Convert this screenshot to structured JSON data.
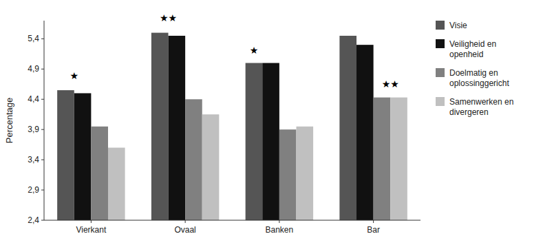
{
  "chart_data": {
    "type": "bar",
    "categories": [
      "Vierkant",
      "Ovaal",
      "Banken",
      "Bar"
    ],
    "series": [
      {
        "name": "Visie",
        "color": "#555555",
        "values": [
          4.55,
          5.5,
          5.0,
          5.45
        ]
      },
      {
        "name": "Veiligheid en\nopenheid",
        "color": "#111111",
        "values": [
          4.5,
          5.45,
          5.0,
          5.3
        ]
      },
      {
        "name": "Doelmatig en\noplossinggericht",
        "color": "#808080",
        "values": [
          3.95,
          4.4,
          3.9,
          4.43
        ]
      },
      {
        "name": "Samenwerken en\ndivergeren",
        "color": "#c0c0c0",
        "values": [
          3.6,
          4.15,
          3.95,
          4.43
        ]
      }
    ],
    "y_label": "Percentage",
    "ylim": [
      2.4,
      5.7
    ],
    "yticks": [
      {
        "value": 2.4,
        "label": "2,4"
      },
      {
        "value": 2.9,
        "label": "2,9"
      },
      {
        "value": 3.4,
        "label": "3,4"
      },
      {
        "value": 3.9,
        "label": "3,9"
      },
      {
        "value": 4.4,
        "label": "4,4"
      },
      {
        "value": 4.9,
        "label": "4,9"
      },
      {
        "value": 5.4,
        "label": "5,4"
      }
    ],
    "annotations": [
      {
        "text": "★",
        "category": "Vierkant",
        "series": [
          "Visie",
          "Veiligheid en\nopenheid"
        ],
        "y": 4.7
      },
      {
        "text": "★★",
        "category": "Ovaal",
        "series": [
          "Visie",
          "Veiligheid en\nopenheid"
        ],
        "y": 5.65
      },
      {
        "text": "★",
        "category": "Banken",
        "series": [
          "Visie"
        ],
        "y": 5.12
      },
      {
        "text": "★★",
        "category": "Bar",
        "series": [
          "Doelmatig en\noplossinggericht",
          "Samenwerken en\ndivergeren"
        ],
        "y": 4.56
      }
    ],
    "grid": false,
    "legend": "right"
  }
}
